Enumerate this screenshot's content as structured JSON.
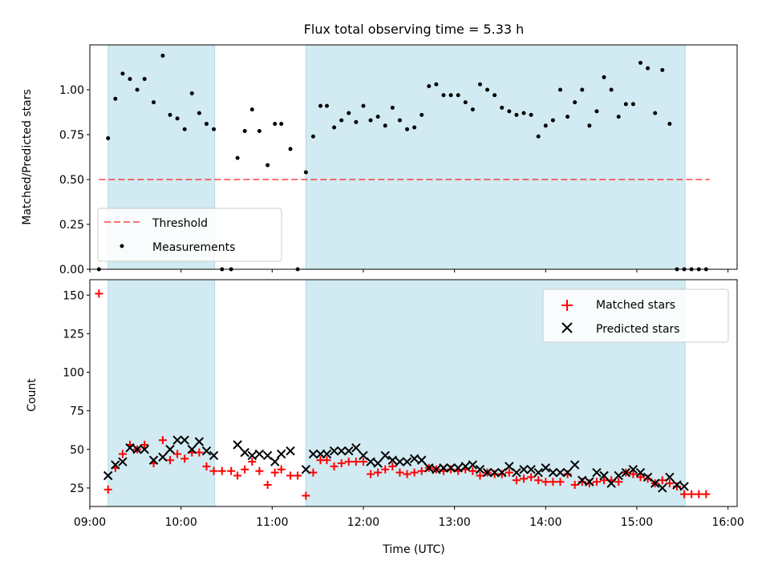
{
  "figure": {
    "title": "Flux total observing time = 5.33 h"
  },
  "colors": {
    "shade": "#add8e6",
    "threshold": "#ff0000",
    "measurement": "#000000",
    "matched": "#ff0000",
    "predicted": "#000000"
  },
  "chart_data": [
    {
      "type": "scatter",
      "panel": "top",
      "ylabel": "Matched/Predicted stars",
      "xlim": [
        9.0,
        16.1
      ],
      "ylim": [
        0.0,
        1.25
      ],
      "yticks": [
        0.0,
        0.25,
        0.5,
        0.75,
        1.0
      ],
      "ytick_labels": [
        "0.00",
        "0.25",
        "0.50",
        "0.75",
        "1.00"
      ],
      "shaded_intervals_hours": [
        [
          9.2,
          10.37
        ],
        [
          11.37,
          15.53
        ]
      ],
      "threshold": {
        "label": "Threshold",
        "value": 0.5,
        "x_range": [
          9.1,
          15.8
        ]
      },
      "legend": {
        "position": "lower-left",
        "entries": [
          "Threshold",
          "Measurements"
        ]
      },
      "series": [
        {
          "name": "Measurements",
          "x": [
            9.1,
            9.2,
            9.28,
            9.36,
            9.44,
            9.52,
            9.6,
            9.7,
            9.8,
            9.88,
            9.96,
            10.04,
            10.12,
            10.2,
            10.28,
            10.36,
            10.45,
            10.55,
            10.62,
            10.7,
            10.78,
            10.86,
            10.95,
            11.03,
            11.1,
            11.2,
            11.28,
            11.37,
            11.45,
            11.53,
            11.6,
            11.68,
            11.76,
            11.84,
            11.92,
            12.0,
            12.08,
            12.16,
            12.24,
            12.32,
            12.4,
            12.48,
            12.56,
            12.64,
            12.72,
            12.8,
            12.88,
            12.96,
            13.04,
            13.12,
            13.2,
            13.28,
            13.36,
            13.44,
            13.52,
            13.6,
            13.68,
            13.76,
            13.84,
            13.92,
            14.0,
            14.08,
            14.16,
            14.24,
            14.32,
            14.4,
            14.48,
            14.56,
            14.64,
            14.72,
            14.8,
            14.88,
            14.96,
            15.04,
            15.12,
            15.2,
            15.28,
            15.36,
            15.44,
            15.52,
            15.6,
            15.68,
            15.76
          ],
          "y": [
            0.0,
            0.73,
            0.95,
            1.09,
            1.06,
            1.0,
            1.06,
            0.93,
            1.19,
            0.86,
            0.84,
            0.78,
            0.98,
            0.87,
            0.81,
            0.78,
            0.0,
            0.0,
            0.62,
            0.77,
            0.89,
            0.77,
            0.58,
            0.81,
            0.81,
            0.67,
            0.0,
            0.54,
            0.74,
            0.91,
            0.91,
            0.79,
            0.83,
            0.87,
            0.82,
            0.91,
            0.83,
            0.85,
            0.8,
            0.9,
            0.83,
            0.78,
            0.79,
            0.86,
            1.02,
            1.03,
            0.97,
            0.97,
            0.97,
            0.93,
            0.89,
            1.03,
            1.0,
            0.97,
            0.9,
            0.88,
            0.86,
            0.87,
            0.86,
            0.74,
            0.8,
            0.83,
            1.0,
            0.85,
            0.93,
            1.0,
            0.8,
            0.88,
            1.07,
            1.0,
            0.85,
            0.92,
            0.92,
            1.15,
            1.12,
            0.87,
            1.11,
            0.81,
            0.0,
            0.0,
            0.0,
            0.0,
            0.0
          ]
        }
      ]
    },
    {
      "type": "scatter",
      "panel": "bottom",
      "xlabel": "Time (UTC)",
      "ylabel": "Count",
      "xlim": [
        9.0,
        16.1
      ],
      "ylim": [
        13,
        160
      ],
      "yticks": [
        25,
        50,
        75,
        100,
        125,
        150
      ],
      "ytick_labels": [
        "25",
        "50",
        "75",
        "100",
        "125",
        "150"
      ],
      "xticks": [
        9,
        10,
        11,
        12,
        13,
        14,
        15,
        16
      ],
      "xtick_labels": [
        "09:00",
        "10:00",
        "11:00",
        "12:00",
        "13:00",
        "14:00",
        "15:00",
        "16:00"
      ],
      "shaded_intervals_hours": [
        [
          9.2,
          10.37
        ],
        [
          11.37,
          15.53
        ]
      ],
      "legend": {
        "position": "top-right",
        "entries": [
          "Matched stars",
          "Predicted stars"
        ]
      },
      "series": [
        {
          "name": "Matched stars",
          "marker": "+",
          "x": [
            9.1,
            9.2,
            9.28,
            9.36,
            9.44,
            9.52,
            9.6,
            9.7,
            9.8,
            9.88,
            9.96,
            10.04,
            10.12,
            10.2,
            10.28,
            10.36,
            10.45,
            10.55,
            10.62,
            10.7,
            10.78,
            10.86,
            10.95,
            11.03,
            11.1,
            11.2,
            11.28,
            11.37,
            11.45,
            11.53,
            11.6,
            11.68,
            11.76,
            11.84,
            11.92,
            12.0,
            12.08,
            12.16,
            12.24,
            12.32,
            12.4,
            12.48,
            12.56,
            12.64,
            12.72,
            12.8,
            12.88,
            12.96,
            13.04,
            13.12,
            13.2,
            13.28,
            13.36,
            13.44,
            13.52,
            13.6,
            13.68,
            13.76,
            13.84,
            13.92,
            14.0,
            14.08,
            14.16,
            14.24,
            14.32,
            14.4,
            14.48,
            14.56,
            14.64,
            14.72,
            14.8,
            14.88,
            14.96,
            15.04,
            15.12,
            15.2,
            15.28,
            15.36,
            15.44,
            15.52,
            15.6,
            15.68,
            15.76
          ],
          "y": [
            151,
            24,
            38,
            47,
            53,
            50,
            53,
            41,
            56,
            43,
            47,
            44,
            48,
            48,
            39,
            36,
            36,
            36,
            33,
            37,
            42,
            36,
            27,
            35,
            37,
            33,
            33,
            20,
            35,
            43,
            43,
            39,
            41,
            42,
            42,
            42,
            34,
            35,
            37,
            39,
            35,
            34,
            35,
            36,
            38,
            37,
            36,
            37,
            36,
            37,
            36,
            33,
            35,
            34,
            34,
            35,
            30,
            31,
            32,
            30,
            29,
            29,
            29,
            34,
            27,
            29,
            28,
            29,
            30,
            30,
            29,
            35,
            34,
            32,
            31,
            28,
            30,
            28,
            26,
            21,
            21,
            21,
            21
          ]
        },
        {
          "name": "Predicted stars",
          "marker": "x",
          "x": [
            9.2,
            9.28,
            9.36,
            9.44,
            9.52,
            9.6,
            9.7,
            9.8,
            9.88,
            9.96,
            10.04,
            10.12,
            10.2,
            10.28,
            10.36,
            10.62,
            10.7,
            10.78,
            10.86,
            10.95,
            11.03,
            11.1,
            11.2,
            11.37,
            11.45,
            11.53,
            11.6,
            11.68,
            11.76,
            11.84,
            11.92,
            12.0,
            12.08,
            12.16,
            12.24,
            12.32,
            12.4,
            12.48,
            12.56,
            12.64,
            12.72,
            12.8,
            12.88,
            12.96,
            13.04,
            13.12,
            13.2,
            13.28,
            13.36,
            13.44,
            13.52,
            13.6,
            13.68,
            13.76,
            13.84,
            13.92,
            14.0,
            14.08,
            14.16,
            14.24,
            14.32,
            14.4,
            14.48,
            14.56,
            14.64,
            14.72,
            14.8,
            14.88,
            14.96,
            15.04,
            15.12,
            15.2,
            15.28,
            15.36,
            15.44,
            15.52
          ],
          "y": [
            33,
            40,
            42,
            51,
            50,
            50,
            43,
            45,
            50,
            56,
            56,
            50,
            55,
            49,
            46,
            53,
            48,
            46,
            47,
            46,
            42,
            47,
            49,
            37,
            47,
            47,
            47,
            49,
            49,
            49,
            51,
            46,
            42,
            41,
            46,
            43,
            42,
            42,
            44,
            43,
            38,
            37,
            38,
            38,
            38,
            39,
            40,
            37,
            35,
            35,
            35,
            39,
            35,
            37,
            37,
            35,
            38,
            35,
            35,
            35,
            40,
            30,
            29,
            35,
            33,
            28,
            33,
            35,
            37,
            35,
            32,
            28,
            25,
            32,
            27,
            26
          ]
        }
      ]
    }
  ]
}
